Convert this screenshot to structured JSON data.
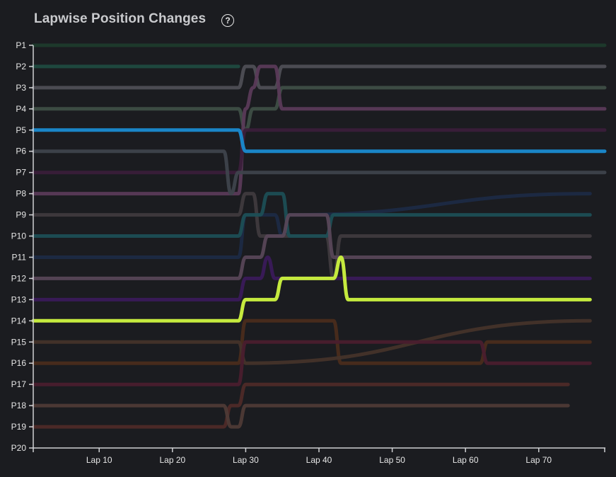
{
  "header": {
    "title": "Lapwise Position Changes",
    "help_icon": "?"
  },
  "chart_data": {
    "type": "line",
    "title": "Lapwise Position Changes",
    "xlabel": "",
    "ylabel": "",
    "x_ticks": [
      "Lap 10",
      "Lap 20",
      "Lap 30",
      "Lap 40",
      "Lap 50",
      "Lap 60",
      "Lap 70"
    ],
    "y_ticks": [
      "P1",
      "P2",
      "P3",
      "P4",
      "P5",
      "P6",
      "P7",
      "P8",
      "P9",
      "P10",
      "P11",
      "P12",
      "P13",
      "P14",
      "P15",
      "P16",
      "P17",
      "P18",
      "P19",
      "P20"
    ],
    "xlim": [
      1,
      79
    ],
    "ylim": [
      20,
      1
    ],
    "grid": false,
    "series": [
      {
        "color": "#1e3a2c",
        "points": [
          [
            1,
            1
          ],
          [
            79,
            1
          ]
        ]
      },
      {
        "color": "#1f4a40",
        "points": [
          [
            1,
            2
          ],
          [
            29,
            2
          ]
        ]
      },
      {
        "color": "#4e4e55",
        "points": [
          [
            1,
            3
          ],
          [
            29,
            3
          ],
          [
            30,
            2
          ],
          [
            31,
            2
          ],
          [
            32,
            3
          ],
          [
            34,
            3
          ],
          [
            35,
            2
          ],
          [
            79,
            2
          ]
        ]
      },
      {
        "color": "#3e4e46",
        "points": [
          [
            1,
            4
          ],
          [
            29,
            4
          ],
          [
            30,
            5
          ],
          [
            31,
            4
          ],
          [
            34,
            4
          ],
          [
            35,
            3
          ],
          [
            79,
            3
          ]
        ]
      },
      {
        "color": "#5a3a58",
        "points": [
          [
            1,
            8
          ],
          [
            29,
            8
          ],
          [
            30,
            4
          ],
          [
            31,
            3
          ],
          [
            32,
            2
          ],
          [
            34,
            2
          ],
          [
            35,
            4
          ],
          [
            79,
            4
          ]
        ]
      },
      {
        "color": "#3a1e3a",
        "points": [
          [
            1,
            7
          ],
          [
            29,
            7
          ],
          [
            30,
            5
          ],
          [
            79,
            5
          ]
        ]
      },
      {
        "color": "#1a85c7",
        "highlight": true,
        "points": [
          [
            1,
            5
          ],
          [
            29,
            5
          ],
          [
            30,
            6
          ],
          [
            79,
            6
          ]
        ]
      },
      {
        "color": "#3e434c",
        "points": [
          [
            1,
            6
          ],
          [
            27,
            6
          ],
          [
            28,
            8
          ],
          [
            29,
            7
          ],
          [
            79,
            7
          ]
        ]
      },
      {
        "color": "#1c2a44",
        "points": [
          [
            1,
            11
          ],
          [
            29,
            11
          ],
          [
            30,
            9
          ],
          [
            34,
            9
          ],
          [
            35,
            10
          ],
          [
            36,
            9
          ],
          [
            77,
            8
          ]
        ]
      },
      {
        "color": "#3f3a3e",
        "points": [
          [
            1,
            9
          ],
          [
            29,
            9
          ],
          [
            30,
            8
          ],
          [
            31,
            8
          ],
          [
            32,
            10
          ],
          [
            41,
            10
          ],
          [
            42,
            12
          ],
          [
            43,
            10
          ],
          [
            77,
            10
          ]
        ]
      },
      {
        "color": "#1c4e55",
        "points": [
          [
            1,
            10
          ],
          [
            29,
            10
          ],
          [
            30,
            9
          ],
          [
            32,
            9
          ],
          [
            33,
            8
          ],
          [
            35,
            8
          ],
          [
            36,
            10
          ],
          [
            41,
            10
          ],
          [
            42,
            9
          ],
          [
            77,
            9
          ]
        ]
      },
      {
        "color": "#574657",
        "points": [
          [
            1,
            12
          ],
          [
            29,
            12
          ],
          [
            30,
            11
          ],
          [
            32,
            11
          ],
          [
            33,
            10
          ],
          [
            35,
            10
          ],
          [
            36,
            9
          ],
          [
            41,
            9
          ],
          [
            42,
            11
          ],
          [
            77,
            11
          ]
        ]
      },
      {
        "color": "#3a1a5a",
        "points": [
          [
            1,
            13
          ],
          [
            29,
            13
          ],
          [
            30,
            12
          ],
          [
            32,
            12
          ],
          [
            33,
            11
          ],
          [
            34,
            12
          ],
          [
            77,
            12
          ]
        ]
      },
      {
        "color": "#c5ea3e",
        "highlight": true,
        "points": [
          [
            1,
            14
          ],
          [
            29,
            14
          ],
          [
            30,
            13
          ],
          [
            34,
            13
          ],
          [
            35,
            12
          ],
          [
            42,
            12
          ],
          [
            43,
            11
          ],
          [
            44,
            13
          ],
          [
            77,
            13
          ]
        ]
      },
      {
        "color": "#4a2c1c",
        "points": [
          [
            1,
            16
          ],
          [
            29,
            16
          ],
          [
            30,
            14
          ],
          [
            42,
            14
          ],
          [
            43,
            16
          ],
          [
            62,
            16
          ],
          [
            63,
            15
          ],
          [
            77,
            15
          ]
        ]
      },
      {
        "color": "#45332a",
        "points": [
          [
            1,
            15
          ],
          [
            29,
            15
          ],
          [
            30,
            16
          ],
          [
            77,
            14
          ]
        ]
      },
      {
        "color": "#4a1e2e",
        "points": [
          [
            1,
            17
          ],
          [
            29,
            17
          ],
          [
            30,
            15
          ],
          [
            62,
            15
          ],
          [
            63,
            16
          ],
          [
            77,
            16
          ]
        ]
      },
      {
        "color": "#4e2a28",
        "points": [
          [
            1,
            19
          ],
          [
            27,
            19
          ],
          [
            28,
            18
          ],
          [
            29,
            18
          ],
          [
            30,
            17
          ],
          [
            74,
            17
          ]
        ]
      },
      {
        "color": "#4e3a36",
        "points": [
          [
            1,
            18
          ],
          [
            27,
            18
          ],
          [
            28,
            19
          ],
          [
            29,
            19
          ],
          [
            30,
            18
          ],
          [
            74,
            18
          ]
        ]
      }
    ]
  }
}
